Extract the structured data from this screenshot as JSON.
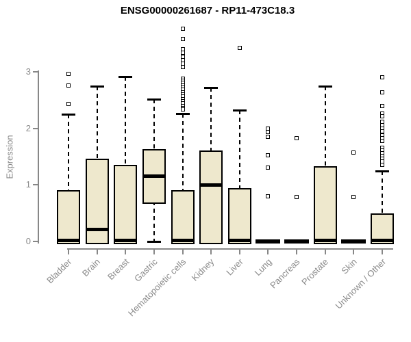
{
  "chart_data": {
    "type": "boxplot",
    "title": "ENSG00000261687 - RP11-473C18.3",
    "xlabel": "",
    "ylabel": "Expression",
    "ylim": [
      0,
      3
    ],
    "y_ticks": [
      0,
      1,
      2,
      3
    ],
    "grid": false,
    "legend": "none",
    "categories": [
      "Bladder",
      "Brain",
      "Breast",
      "Gastric",
      "Hematopoietic cells",
      "Kidney",
      "Liver",
      "Lung",
      "Pancreas",
      "Prostate",
      "Skin",
      "Unknown / Other"
    ],
    "series": [
      {
        "label": "Bladder",
        "q1": 0,
        "median": 0.02,
        "q3": 0.91,
        "whisker_low": 0,
        "whisker_high": 2.25,
        "outliers": [
          2.96,
          2.76,
          2.43
        ]
      },
      {
        "label": "Brain",
        "q1": 0,
        "median": 0.22,
        "q3": 1.46,
        "whisker_low": 0,
        "whisker_high": 2.75,
        "outliers": []
      },
      {
        "label": "Breast",
        "q1": 0,
        "median": 0.02,
        "q3": 1.35,
        "whisker_low": 0,
        "whisker_high": 2.92,
        "outliers": []
      },
      {
        "label": "Gastric",
        "q1": 0.71,
        "median": 1.16,
        "q3": 1.63,
        "whisker_low": 0,
        "whisker_high": 2.51,
        "outliers": []
      },
      {
        "label": "Hematopoietic cells",
        "q1": 0,
        "median": 0.02,
        "q3": 0.91,
        "whisker_low": 0,
        "whisker_high": 2.26,
        "outliers": [
          3.76,
          3.58,
          3.4,
          3.34,
          3.27,
          3.2,
          3.14,
          3.08,
          2.88,
          2.84,
          2.8,
          2.76,
          2.72,
          2.68,
          2.64,
          2.6,
          2.56,
          2.52,
          2.48,
          2.44,
          2.4,
          2.36,
          2.33
        ]
      },
      {
        "label": "Kidney",
        "q1": 0,
        "median": 1.0,
        "q3": 1.61,
        "whisker_low": 0,
        "whisker_high": 2.72,
        "outliers": []
      },
      {
        "label": "Liver",
        "q1": 0,
        "median": 0.03,
        "q3": 0.94,
        "whisker_low": 0,
        "whisker_high": 2.32,
        "outliers": [
          3.42
        ]
      },
      {
        "label": "Lung",
        "q1": 0,
        "median": 0,
        "q3": 0,
        "whisker_low": 0,
        "whisker_high": 0,
        "outliers": [
          1.99,
          1.93,
          1.85,
          1.52,
          1.3,
          0.8
        ]
      },
      {
        "label": "Pancreas",
        "q1": 0,
        "median": 0,
        "q3": 0,
        "whisker_low": 0,
        "whisker_high": 0,
        "outliers": [
          1.83,
          0.79
        ]
      },
      {
        "label": "Prostate",
        "q1": 0,
        "median": 0.02,
        "q3": 1.33,
        "whisker_low": 0,
        "whisker_high": 2.74,
        "outliers": []
      },
      {
        "label": "Skin",
        "q1": 0,
        "median": 0,
        "q3": 0,
        "whisker_low": 0,
        "whisker_high": 0,
        "outliers": [
          1.57,
          0.79
        ]
      },
      {
        "label": "Unknown / Other",
        "q1": 0,
        "median": 0.02,
        "q3": 0.5,
        "whisker_low": 0,
        "whisker_high": 1.25,
        "outliers": [
          2.9,
          2.64,
          2.4,
          2.26,
          2.21,
          2.12,
          2.06,
          2.0,
          1.95,
          1.88,
          1.83,
          1.78,
          1.66,
          1.61,
          1.56,
          1.51,
          1.46,
          1.42,
          1.36
        ]
      }
    ],
    "colors": {
      "box_fill": "#EEE8CD",
      "box_stroke": "#000000",
      "median": "#000000",
      "axis": "#878787",
      "tick_label": "#8a8a8a",
      "title": "#000000",
      "background": "#ffffff"
    }
  }
}
